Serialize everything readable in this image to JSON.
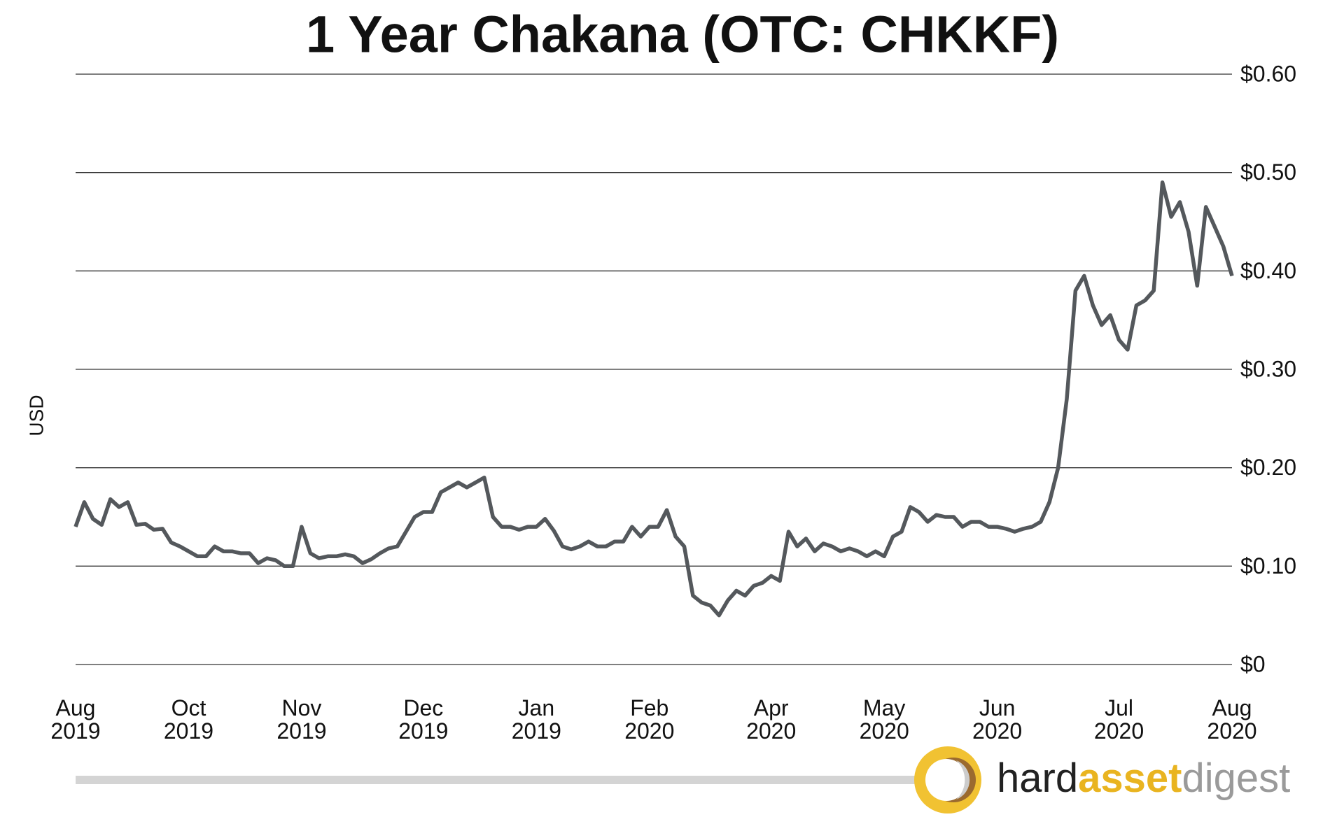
{
  "chart_data": {
    "type": "line",
    "title": "1 Year Chakana (OTC: CHKKF)",
    "y_label": "USD",
    "categories": [
      "Aug 2019",
      null,
      null,
      null,
      null,
      null,
      null,
      null,
      null,
      null,
      null,
      null,
      null,
      "Oct 2019",
      null,
      null,
      null,
      null,
      null,
      null,
      null,
      null,
      null,
      null,
      null,
      null,
      "Nov 2019",
      null,
      null,
      null,
      null,
      null,
      null,
      null,
      null,
      null,
      null,
      null,
      null,
      null,
      "Dec 2019",
      null,
      null,
      null,
      null,
      null,
      null,
      null,
      null,
      null,
      null,
      null,
      null,
      "Jan 2019",
      null,
      null,
      null,
      null,
      null,
      null,
      null,
      null,
      null,
      null,
      null,
      null,
      "Feb 2020",
      null,
      null,
      null,
      null,
      null,
      null,
      null,
      null,
      null,
      null,
      null,
      null,
      null,
      "Apr 2020",
      null,
      null,
      null,
      null,
      null,
      null,
      null,
      null,
      null,
      null,
      null,
      null,
      "May 2020",
      null,
      null,
      null,
      null,
      null,
      null,
      null,
      null,
      null,
      null,
      null,
      null,
      "Jun 2020",
      null,
      null,
      null,
      null,
      null,
      null,
      null,
      null,
      null,
      null,
      null,
      null,
      null,
      "Jul 2020",
      null,
      null,
      null,
      null,
      null,
      null,
      null,
      null,
      null,
      null,
      null,
      null,
      "Aug 2020"
    ],
    "values": [
      0.14,
      0.165,
      0.148,
      0.142,
      0.168,
      0.16,
      0.165,
      0.142,
      0.143,
      0.137,
      0.138,
      0.124,
      0.12,
      0.115,
      0.11,
      0.11,
      0.12,
      0.115,
      0.115,
      0.113,
      0.113,
      0.103,
      0.108,
      0.106,
      0.1,
      0.1,
      0.14,
      0.113,
      0.108,
      0.11,
      0.11,
      0.112,
      0.11,
      0.103,
      0.107,
      0.113,
      0.118,
      0.12,
      0.135,
      0.15,
      0.155,
      0.155,
      0.175,
      0.18,
      0.185,
      0.18,
      0.185,
      0.19,
      0.15,
      0.14,
      0.14,
      0.137,
      0.14,
      0.14,
      0.148,
      0.136,
      0.12,
      0.117,
      0.12,
      0.125,
      0.12,
      0.12,
      0.125,
      0.125,
      0.14,
      0.13,
      0.14,
      0.14,
      0.157,
      0.13,
      0.12,
      0.07,
      0.063,
      0.06,
      0.05,
      0.065,
      0.075,
      0.07,
      0.08,
      0.083,
      0.09,
      0.085,
      0.135,
      0.12,
      0.128,
      0.115,
      0.123,
      0.12,
      0.115,
      0.118,
      0.115,
      0.11,
      0.115,
      0.11,
      0.13,
      0.135,
      0.16,
      0.155,
      0.145,
      0.152,
      0.15,
      0.15,
      0.14,
      0.145,
      0.145,
      0.14,
      0.14,
      0.138,
      0.135,
      0.138,
      0.14,
      0.145,
      0.165,
      0.2,
      0.27,
      0.38,
      0.395,
      0.365,
      0.345,
      0.355,
      0.33,
      0.32,
      0.365,
      0.37,
      0.38,
      0.49,
      0.455,
      0.47,
      0.44,
      0.385,
      0.465,
      0.445,
      0.425,
      0.395
    ],
    "color": "#54585c",
    "ylim": [
      0,
      0.6
    ],
    "yticks": [
      {
        "value": 0,
        "label": "$0"
      },
      {
        "value": 0.1,
        "label": "$0.10"
      },
      {
        "value": 0.2,
        "label": "$0.20"
      },
      {
        "value": 0.3,
        "label": "$0.30"
      },
      {
        "value": 0.4,
        "label": "$0.40"
      },
      {
        "value": 0.5,
        "label": "$0.50"
      },
      {
        "value": 0.6,
        "label": "$0.60"
      }
    ],
    "grid": true
  },
  "logo": {
    "parts": [
      "hard",
      "asset",
      "digest"
    ]
  }
}
